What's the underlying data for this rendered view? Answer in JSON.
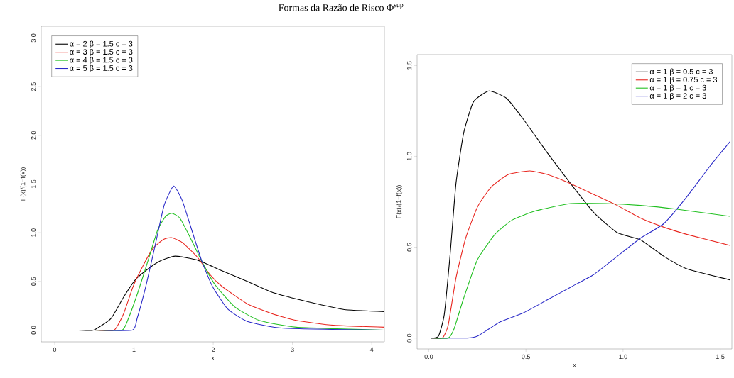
{
  "chart_data": [
    {
      "type": "line",
      "title": "Formas da Razão de Risco Φ$^{sup}$",
      "xlabel": "x",
      "ylabel": "F(x)/(1−f(x))",
      "xlim": [
        -0.17,
        4.16
      ],
      "ylim": [
        -0.12,
        3.12
      ],
      "xticks": [
        0,
        1,
        2,
        3,
        4
      ],
      "yticks": [
        {
          "value": 0,
          "label": "0.0"
        },
        {
          "value": 0.5,
          "label": "0.5"
        },
        {
          "value": 1,
          "label": "1.0"
        },
        {
          "value": 1.5,
          "label": "1.5"
        },
        {
          "value": 2,
          "label": "2.0"
        },
        {
          "value": 2.5,
          "label": "2.5"
        },
        {
          "value": 3,
          "label": "3.0"
        }
      ],
      "legend": "top left",
      "series": [
        {
          "name": "α = 2   β = 1.5 c = 3",
          "color": "#000000",
          "x": [
            0.01,
            0.3,
            0.49,
            0.71,
            0.87,
            1.02,
            1.18,
            1.33,
            1.52,
            1.8,
            2.11,
            2.43,
            2.74,
            3.05,
            3.36,
            3.67,
            4.16
          ],
          "values": [
            0,
            0,
            0,
            0.12,
            0.34,
            0.52,
            0.63,
            0.71,
            0.76,
            0.72,
            0.61,
            0.5,
            0.39,
            0.32,
            0.26,
            0.21,
            0.19
          ]
        },
        {
          "name": "α = 3   β = 1.5 c = 3",
          "color": "#e8261f",
          "x": [
            0.01,
            0.5,
            0.75,
            0.87,
            0.99,
            1.12,
            1.24,
            1.37,
            1.47,
            1.61,
            1.8,
            1.96,
            2.11,
            2.43,
            2.74,
            3.05,
            3.52,
            4.16
          ],
          "values": [
            0,
            0,
            0,
            0.17,
            0.45,
            0.67,
            0.84,
            0.93,
            0.95,
            0.9,
            0.75,
            0.57,
            0.45,
            0.27,
            0.17,
            0.1,
            0.05,
            0.03
          ]
        },
        {
          "name": "α = 4   β = 1.5 c = 3",
          "color": "#22c022",
          "x": [
            0.01,
            0.5,
            0.85,
            0.93,
            1.05,
            1.18,
            1.3,
            1.4,
            1.48,
            1.58,
            1.71,
            1.86,
            2.02,
            2.27,
            2.58,
            3.05,
            4.16
          ],
          "values": [
            0,
            0,
            0,
            0.12,
            0.39,
            0.72,
            1.03,
            1.17,
            1.2,
            1.15,
            0.95,
            0.7,
            0.47,
            0.24,
            0.1,
            0.03,
            0
          ]
        },
        {
          "name": "α = 5   β = 1.5 c = 3",
          "color": "#2a2ac8",
          "x": [
            0.01,
            0.5,
            0.98,
            1.04,
            1.15,
            1.27,
            1.38,
            1.5,
            1.61,
            1.74,
            1.86,
            1.99,
            2.18,
            2.43,
            2.89,
            4.16
          ],
          "values": [
            0,
            0,
            0,
            0.12,
            0.45,
            0.88,
            1.28,
            1.48,
            1.33,
            1.0,
            0.7,
            0.45,
            0.22,
            0.09,
            0.02,
            0
          ]
        }
      ]
    },
    {
      "type": "line",
      "xlabel": "x",
      "ylabel": "F(x)/(1−f(x))",
      "xlim": [
        -0.06,
        1.56
      ],
      "ylim": [
        -0.06,
        1.56
      ],
      "xticks": [
        {
          "value": 0,
          "label": "0.0"
        },
        {
          "value": 0.5,
          "label": "0.5"
        },
        {
          "value": 1,
          "label": "1.0"
        },
        {
          "value": 1.5,
          "label": "1.5"
        }
      ],
      "yticks": [
        {
          "value": 0,
          "label": "0.0"
        },
        {
          "value": 0.5,
          "label": "0.5"
        },
        {
          "value": 1,
          "label": "1.0"
        },
        {
          "value": 1.5,
          "label": "1.5"
        }
      ],
      "legend": "top right",
      "series": [
        {
          "name": "α = 1 β = 0.5   c = 3",
          "color": "#000000",
          "x": [
            0.01,
            0.05,
            0.08,
            0.11,
            0.14,
            0.18,
            0.23,
            0.31,
            0.4,
            0.49,
            0.61,
            0.73,
            0.85,
            0.97,
            1.09,
            1.21,
            1.33,
            1.55
          ],
          "values": [
            0,
            0.01,
            0.13,
            0.46,
            0.85,
            1.13,
            1.3,
            1.36,
            1.32,
            1.2,
            1.02,
            0.85,
            0.69,
            0.58,
            0.54,
            0.45,
            0.38,
            0.32
          ]
        },
        {
          "name": "α = 1 β = 0.75 c = 3",
          "color": "#e8261f",
          "x": [
            0.01,
            0.07,
            0.1,
            0.14,
            0.19,
            0.25,
            0.32,
            0.41,
            0.52,
            0.61,
            0.73,
            0.85,
            0.97,
            1.09,
            1.21,
            1.33,
            1.55
          ],
          "values": [
            0,
            0,
            0.07,
            0.33,
            0.55,
            0.72,
            0.83,
            0.9,
            0.92,
            0.9,
            0.85,
            0.79,
            0.73,
            0.66,
            0.61,
            0.57,
            0.51
          ]
        },
        {
          "name": "α = 1 β = 1      c = 3",
          "color": "#22c022",
          "x": [
            0.01,
            0.1,
            0.13,
            0.18,
            0.25,
            0.34,
            0.43,
            0.55,
            0.73,
            0.91,
            1.09,
            1.27,
            1.55
          ],
          "values": [
            0,
            0,
            0.05,
            0.22,
            0.43,
            0.57,
            0.65,
            0.7,
            0.74,
            0.74,
            0.73,
            0.71,
            0.67
          ]
        },
        {
          "name": "α = 1 β = 2      c = 3",
          "color": "#2a2ac8",
          "x": [
            0.01,
            0.2,
            0.25,
            0.31,
            0.37,
            0.49,
            0.61,
            0.73,
            0.85,
            0.97,
            1.09,
            1.21,
            1.33,
            1.45,
            1.55
          ],
          "values": [
            0,
            0,
            0.01,
            0.05,
            0.09,
            0.14,
            0.21,
            0.28,
            0.35,
            0.45,
            0.55,
            0.63,
            0.78,
            0.95,
            1.08
          ]
        }
      ]
    }
  ]
}
